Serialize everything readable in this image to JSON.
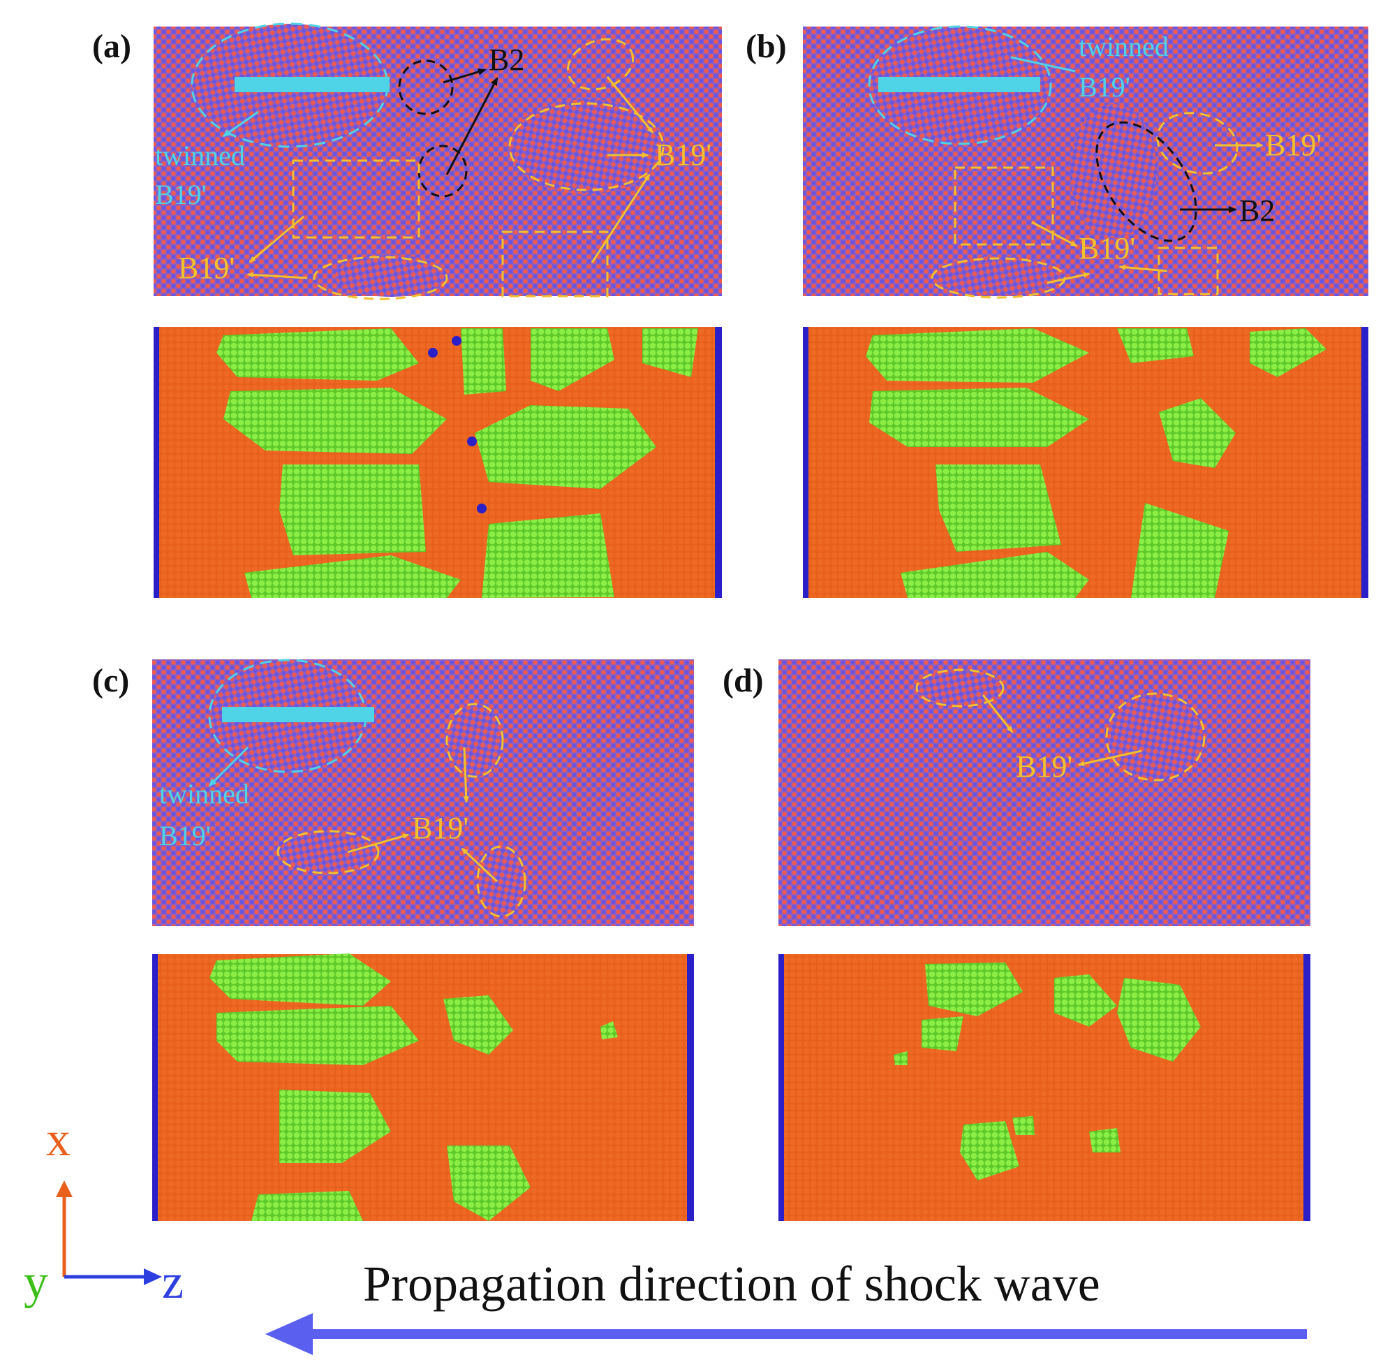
{
  "panels": [
    {
      "label": "(a)",
      "top_annotations": [
        {
          "text": "B2",
          "color": "#111111"
        },
        {
          "text": "B19'",
          "color": "#f2c12e"
        },
        {
          "text": "B19'",
          "color": "#f2c12e"
        },
        {
          "text": "twinned",
          "color": "#4fd3e6"
        },
        {
          "text": "B19'",
          "color": "#4fd3e6"
        }
      ]
    },
    {
      "label": "(b)",
      "top_annotations": [
        {
          "text": "twinned",
          "color": "#4fd3e6"
        },
        {
          "text": "B19'",
          "color": "#4fd3e6"
        },
        {
          "text": "B19'",
          "color": "#f2c12e"
        },
        {
          "text": "B2",
          "color": "#111111"
        },
        {
          "text": "B19'",
          "color": "#f2c12e"
        }
      ]
    },
    {
      "label": "(c)",
      "top_annotations": [
        {
          "text": "twinned",
          "color": "#4fd3e6"
        },
        {
          "text": "B19'",
          "color": "#4fd3e6"
        },
        {
          "text": "B19'",
          "color": "#f2c12e"
        }
      ]
    },
    {
      "label": "(d)",
      "top_annotations": [
        {
          "text": "B19'",
          "color": "#f2c12e"
        }
      ]
    }
  ],
  "axes": {
    "x": "x",
    "y": "y",
    "z": "z"
  },
  "caption": "Propagation direction of shock wave",
  "colors": {
    "atom_red": "#ec5a52",
    "atom_blue": "#6a55e0",
    "cna_orange": "#e8601c",
    "cna_green": "#7be33a",
    "cna_blue": "#2b1fc8",
    "axis_x": "#e8601c",
    "axis_y": "#3dbf1a",
    "axis_z": "#2e3fe0",
    "arrow": "#5a5ff0"
  }
}
